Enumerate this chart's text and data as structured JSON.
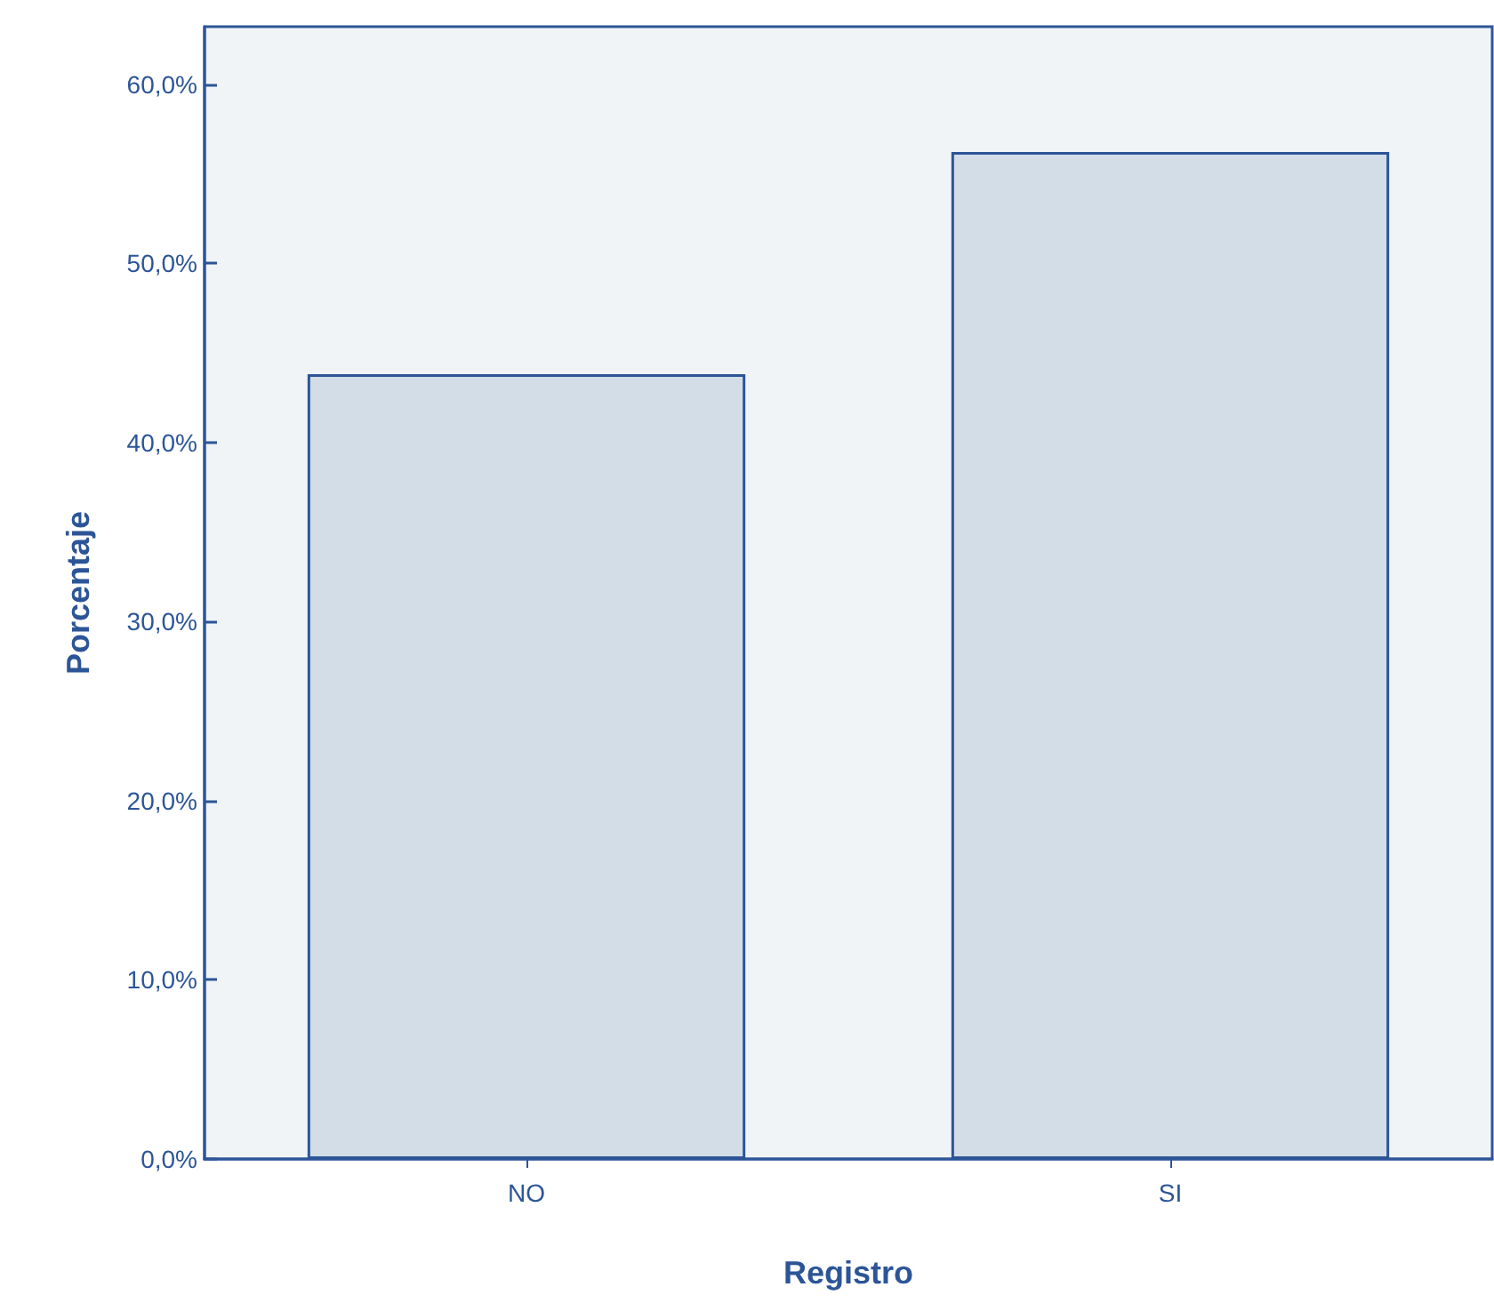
{
  "chart_data": {
    "type": "bar",
    "xlabel": "Registro",
    "ylabel": "Porcentaje",
    "categories": [
      "NO",
      "SI"
    ],
    "values": [
      43.8,
      56.2
    ],
    "color": "#d3dde8",
    "ylim": [
      0,
      63.2
    ],
    "yticks": [
      {
        "value": 0,
        "label": "0,0%"
      },
      {
        "value": 10,
        "label": "10,0%"
      },
      {
        "value": 20,
        "label": "20,0%"
      },
      {
        "value": 30,
        "label": "30,0%"
      },
      {
        "value": 40,
        "label": "40,0%"
      },
      {
        "value": 50,
        "label": "50,0%"
      },
      {
        "value": 60,
        "label": "60,0%"
      }
    ]
  }
}
